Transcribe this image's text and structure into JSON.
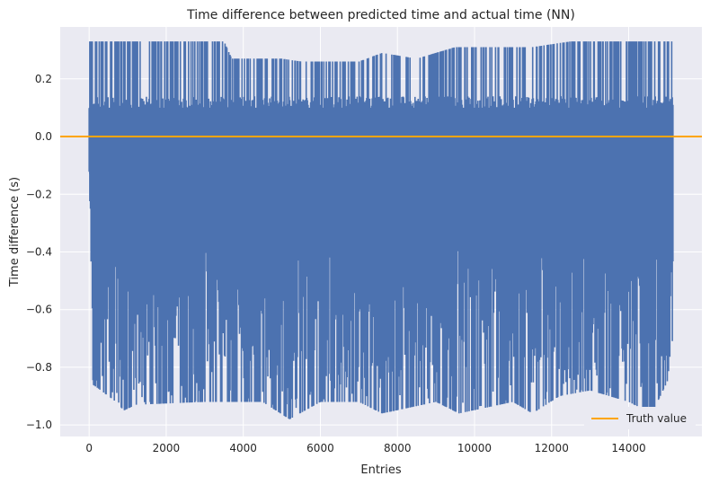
{
  "chart_data": {
    "type": "line",
    "title": "Time difference between predicted time and actual time (NN)",
    "xlabel": "Entries",
    "ylabel": "Time difference (s)",
    "xlim": [
      -750,
      15900
    ],
    "ylim": [
      -1.04,
      0.38
    ],
    "xticks": [
      0,
      2000,
      4000,
      6000,
      8000,
      10000,
      12000,
      14000
    ],
    "yticks": [
      -1.0,
      -0.8,
      -0.6,
      -0.4,
      -0.2,
      0.0,
      0.2
    ],
    "ytick_labels": [
      "−1.0",
      "−0.8",
      "−0.6",
      "−0.4",
      "−0.2",
      "0.0",
      "0.2"
    ],
    "grid": true,
    "legend_position": "lower-right",
    "series": [
      {
        "name": "",
        "color": "#4c72b0",
        "band_x_range": [
          0,
          15150
        ],
        "band_upper_envelope": [
          [
            0,
            0.33
          ],
          [
            1000,
            0.33
          ],
          [
            2000,
            0.33
          ],
          [
            3500,
            0.33
          ],
          [
            3700,
            0.27
          ],
          [
            5000,
            0.27
          ],
          [
            5500,
            0.26
          ],
          [
            7000,
            0.26
          ],
          [
            7600,
            0.29
          ],
          [
            8500,
            0.27
          ],
          [
            9500,
            0.31
          ],
          [
            11500,
            0.31
          ],
          [
            12500,
            0.33
          ],
          [
            15150,
            0.33
          ]
        ],
        "band_lower_envelope": [
          [
            0,
            -0.1
          ],
          [
            100,
            -0.86
          ],
          [
            700,
            -0.92
          ],
          [
            900,
            -0.95
          ],
          [
            1200,
            -0.93
          ],
          [
            3000,
            -0.92
          ],
          [
            4500,
            -0.92
          ],
          [
            5200,
            -0.98
          ],
          [
            6000,
            -0.92
          ],
          [
            7000,
            -0.92
          ],
          [
            7600,
            -0.96
          ],
          [
            9000,
            -0.92
          ],
          [
            9600,
            -0.96
          ],
          [
            11000,
            -0.92
          ],
          [
            11500,
            -0.96
          ],
          [
            12200,
            -0.9
          ],
          [
            13000,
            -0.88
          ],
          [
            14000,
            -0.92
          ],
          [
            14600,
            -0.96
          ],
          [
            15000,
            -0.85
          ],
          [
            15150,
            -0.69
          ]
        ]
      },
      {
        "name": "Truth value",
        "color": "#ffa500",
        "x": [
          -750,
          15900
        ],
        "y": [
          0.0,
          0.0
        ]
      }
    ]
  }
}
